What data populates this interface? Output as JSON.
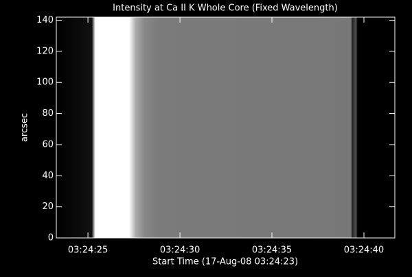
{
  "chart_data": {
    "type": "image",
    "title": "Intensity at Ca II K Whole Core (Fixed Wavelength)",
    "x_label": "Start Time (17-Aug-08 03:24:23)",
    "y_label": "arcsec",
    "xlim": [
      0.28,
      18.68
    ],
    "xticks": [
      {
        "value": 2,
        "label": "03:24:25"
      },
      {
        "value": 7,
        "label": "03:24:30"
      },
      {
        "value": 12,
        "label": "03:24:35"
      },
      {
        "value": 17,
        "label": "03:24:40"
      }
    ],
    "ylim": [
      0,
      142
    ],
    "yticks": [
      0,
      20,
      40,
      60,
      80,
      100,
      120,
      140
    ]
  }
}
